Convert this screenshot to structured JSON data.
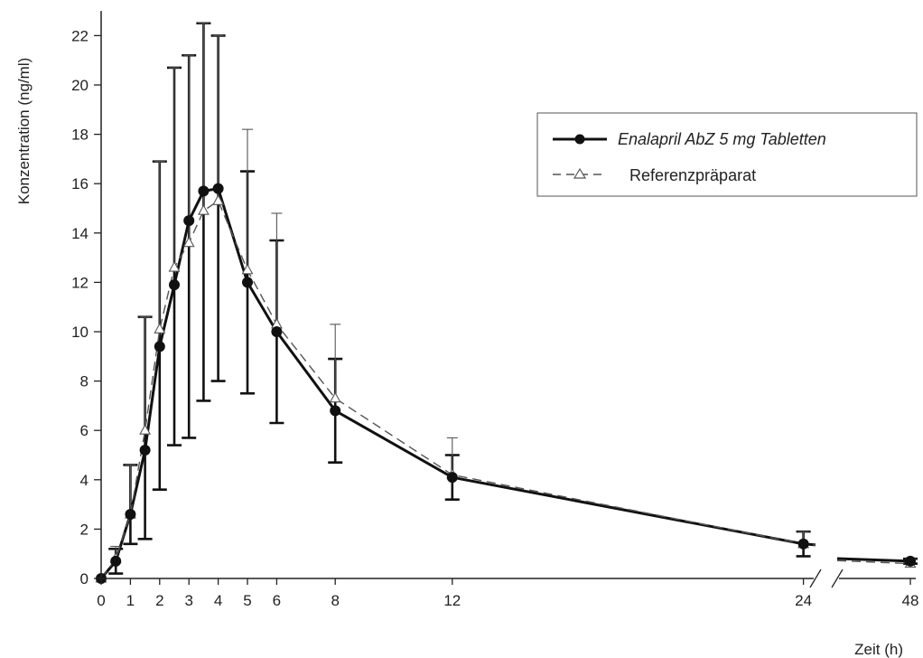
{
  "chart_data": {
    "type": "line",
    "title": "",
    "xlabel": "Zeit (h)",
    "ylabel": "Konzentration (ng/ml)",
    "ylim": [
      0,
      23
    ],
    "y_ticks": [
      0,
      2,
      4,
      6,
      8,
      10,
      12,
      14,
      16,
      18,
      20,
      22
    ],
    "x_ticks": [
      0,
      1,
      2,
      3,
      4,
      5,
      6,
      8,
      12,
      24,
      48
    ],
    "x_tick_labels": [
      "0",
      "1",
      "2",
      "3",
      "4",
      "5",
      "6",
      "8",
      "12",
      "24",
      "48"
    ],
    "x_axis_break": [
      26,
      30
    ],
    "legend_position": "top-right",
    "series": [
      {
        "name": "Enalapril AbZ 5 mg Tabletten",
        "style": "solid-filled-circle",
        "color": "#111111",
        "x": [
          0,
          0.5,
          1,
          1.5,
          2,
          2.5,
          3,
          3.5,
          4,
          5,
          6,
          8,
          12,
          24,
          48
        ],
        "y": [
          0,
          0.7,
          2.6,
          5.2,
          9.4,
          11.9,
          14.5,
          15.7,
          15.8,
          12.0,
          10.0,
          6.8,
          4.1,
          1.4,
          0.7
        ],
        "err_low": [
          0,
          0.5,
          1.2,
          3.6,
          5.8,
          6.5,
          8.8,
          8.5,
          7.8,
          4.5,
          3.7,
          2.1,
          0.9,
          0.5,
          0.1
        ],
        "err_high": [
          0,
          0.5,
          2.0,
          5.4,
          7.5,
          8.8,
          6.7,
          6.8,
          6.2,
          4.5,
          3.7,
          2.1,
          0.9,
          0.5,
          0.1
        ]
      },
      {
        "name": "Referenzpräparat",
        "style": "dashed-open-triangle",
        "color": "#555555",
        "x": [
          0,
          0.5,
          1,
          1.5,
          2,
          2.5,
          3,
          3.5,
          4,
          5,
          6,
          8,
          12,
          24,
          48
        ],
        "y": [
          0,
          0.8,
          2.6,
          6.0,
          10.1,
          12.6,
          13.6,
          14.9,
          15.3,
          12.5,
          10.3,
          7.3,
          4.2,
          1.4,
          0.6
        ],
        "err_low": [
          0,
          0,
          0,
          0,
          0,
          0,
          0,
          0,
          0,
          0,
          0,
          0,
          0,
          0,
          0
        ],
        "err_high": [
          0,
          0.5,
          2.0,
          4.6,
          6.8,
          8.1,
          7.6,
          7.6,
          6.7,
          5.7,
          4.5,
          3.0,
          1.5,
          0.5,
          0.2
        ]
      }
    ],
    "colors": {
      "axis": "#222222",
      "background": "#ffffff"
    }
  }
}
